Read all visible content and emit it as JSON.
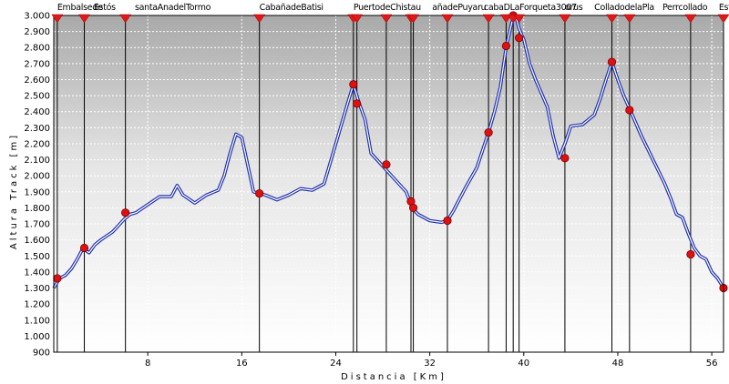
{
  "chart_data": {
    "type": "line",
    "xlabel": "Distancia [Km]",
    "ylabel": "Altura Track [m]",
    "xlim": [
      0,
      57
    ],
    "ylim": [
      900,
      3000
    ],
    "x_ticks": [
      8,
      16,
      24,
      32,
      40,
      48,
      56
    ],
    "y_ticks": [
      "900",
      "1.000",
      "1.100",
      "1.200",
      "1.300",
      "1.400",
      "1.500",
      "1.600",
      "1.700",
      "1.800",
      "1.900",
      "2.000",
      "2.100",
      "2.200",
      "2.300",
      "2.400",
      "2.500",
      "2.600",
      "2.700",
      "2.800",
      "2.900",
      "3.000"
    ],
    "grid": true,
    "line_color": "#2233aa",
    "marker_color": "#dd1111",
    "series": [
      {
        "x": [
          0,
          0.5,
          1,
          1.5,
          2,
          2.5,
          3,
          3.5,
          4,
          5,
          6,
          6.5,
          7,
          8,
          9,
          10,
          10.5,
          11,
          12,
          13,
          14,
          14.5,
          15,
          15.5,
          16,
          17,
          18,
          19,
          20,
          21,
          22,
          23,
          24,
          25,
          25.5,
          26,
          26.5,
          27,
          28,
          29,
          30,
          30.5,
          31,
          32,
          33,
          33.5,
          34,
          35,
          36,
          37,
          37.5,
          38,
          38.5,
          39,
          39.3,
          39.6,
          40,
          40.5,
          41,
          42,
          42.5,
          43,
          43.5,
          44,
          45,
          46,
          46.5,
          47,
          47.5,
          48,
          48.5,
          49,
          50,
          51,
          52,
          52.5,
          53,
          53.5,
          54,
          54.5,
          55,
          55.5,
          56,
          56.5,
          57
        ],
        "y": [
          1300,
          1360,
          1380,
          1420,
          1480,
          1550,
          1520,
          1570,
          1600,
          1650,
          1730,
          1760,
          1770,
          1820,
          1870,
          1870,
          1940,
          1880,
          1830,
          1880,
          1910,
          2000,
          2140,
          2260,
          2240,
          1900,
          1880,
          1850,
          1880,
          1920,
          1910,
          1950,
          2200,
          2450,
          2570,
          2450,
          2350,
          2140,
          2060,
          1980,
          1900,
          1800,
          1760,
          1720,
          1710,
          1720,
          1780,
          1920,
          2050,
          2270,
          2400,
          2550,
          2800,
          2960,
          3000,
          2920,
          2850,
          2700,
          2600,
          2430,
          2250,
          2110,
          2200,
          2310,
          2320,
          2380,
          2480,
          2600,
          2710,
          2600,
          2500,
          2420,
          2250,
          2100,
          1950,
          1860,
          1760,
          1740,
          1640,
          1550,
          1500,
          1480,
          1400,
          1360,
          1300
        ]
      }
    ],
    "markers": {
      "x": [
        0.3,
        2.6,
        6.1,
        17.5,
        25.5,
        25.8,
        28.3,
        30.4,
        30.6,
        33.5,
        37.0,
        38.5,
        39.1,
        39.6,
        43.5,
        47.5,
        49.0,
        54.2,
        57.0
      ],
      "y": [
        1360,
        1550,
        1770,
        1890,
        2570,
        2450,
        2070,
        1840,
        1800,
        1720,
        2270,
        2810,
        3000,
        2860,
        2110,
        2710,
        2410,
        1510,
        1300
      ]
    },
    "waypoints": {
      "x": [
        0.3,
        2.6,
        6.1,
        17.5,
        25.5,
        25.8,
        28.3,
        30.4,
        30.6,
        33.5,
        37.0,
        38.5,
        39.1,
        39.6,
        43.5,
        47.5,
        49.0,
        54.2,
        57.0
      ],
      "labels": [
        {
          "x": 0.3,
          "text": "Embalsede"
        },
        {
          "x": 3.4,
          "text": "Estós"
        },
        {
          "x": 6.9,
          "text": "santaAnadelTormo"
        },
        {
          "x": 17.5,
          "text": "CabañadeBatisi"
        },
        {
          "x": 25.5,
          "text": "PuertodeChistau"
        },
        {
          "x": 32.2,
          "text": "añadePuyaru"
        },
        {
          "x": 36.6,
          "text": "cabaDLaForqueta3007"
        },
        {
          "x": 43.5,
          "text": "orus"
        },
        {
          "x": 46.0,
          "text": "ColladodelaPla"
        },
        {
          "x": 51.8,
          "text": "Perrcollado"
        },
        {
          "x": 56.6,
          "text": "Esta"
        }
      ]
    }
  }
}
